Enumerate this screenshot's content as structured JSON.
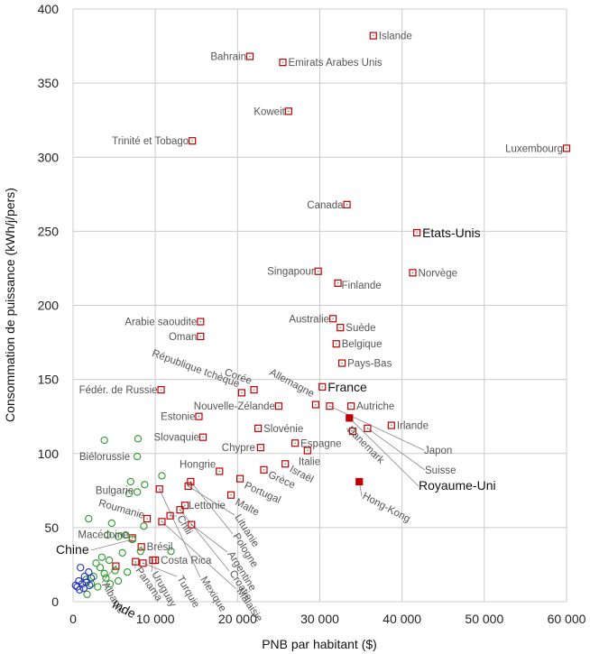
{
  "chart_data": {
    "type": "scatter",
    "xlabel": "PNB par habitant ($)",
    "ylabel": "Consommation de puissance (kWh/j/pers)",
    "xlim": [
      0,
      60000
    ],
    "ylim": [
      0,
      400
    ],
    "xticks": [
      0,
      10000,
      20000,
      30000,
      40000,
      50000,
      60000
    ],
    "xtick_labels": [
      "0",
      "10 000",
      "20 000",
      "30 000",
      "40 000",
      "50 000",
      "60 000"
    ],
    "yticks": [
      0,
      50,
      100,
      150,
      200,
      250,
      300,
      350,
      400
    ],
    "ytick_labels": [
      "0",
      "50",
      "100",
      "150",
      "200",
      "250",
      "300",
      "350",
      "400"
    ],
    "grid": true,
    "colors": {
      "red": "#c00000",
      "green": "#2a9a2a",
      "blue": "#2233bb",
      "grid": "#cccccc",
      "leader": "#888888"
    },
    "series": [
      {
        "marker": "square",
        "color": "red",
        "points": [
          {
            "label": "Islande",
            "x": 36500,
            "y": 382
          },
          {
            "label": "Bahrain",
            "x": 21500,
            "y": 368
          },
          {
            "label": "Emirats Arabes Unis",
            "x": 25500,
            "y": 364
          },
          {
            "label": "Koweit",
            "x": 26200,
            "y": 331
          },
          {
            "label": "Trinité et Tobago",
            "x": 14500,
            "y": 311
          },
          {
            "label": "Luxembourg",
            "x": 60000,
            "y": 306
          },
          {
            "label": "Canada",
            "x": 33300,
            "y": 268
          },
          {
            "label": "Etats-Unis",
            "x": 41800,
            "y": 249,
            "big": true
          },
          {
            "label": "Singapour",
            "x": 29800,
            "y": 223
          },
          {
            "label": "Norvège",
            "x": 41300,
            "y": 222
          },
          {
            "label": "Finlande",
            "x": 32200,
            "y": 215
          },
          {
            "label": "Australie",
            "x": 31600,
            "y": 191
          },
          {
            "label": "Arabie saoudite",
            "x": 15500,
            "y": 189
          },
          {
            "label": "Suède",
            "x": 32500,
            "y": 185
          },
          {
            "label": "Oman",
            "x": 15500,
            "y": 179
          },
          {
            "label": "Belgique",
            "x": 32000,
            "y": 174
          },
          {
            "label": "Pays-Bas",
            "x": 32700,
            "y": 161
          },
          {
            "label": "République tchèque",
            "x": 20500,
            "y": 141
          },
          {
            "label": "Corée",
            "x": 22000,
            "y": 143
          },
          {
            "label": "Fédér. de Russie",
            "x": 10700,
            "y": 143
          },
          {
            "label": "Allemagne",
            "x": 29500,
            "y": 133
          },
          {
            "label": "France",
            "x": 30300,
            "y": 145,
            "big": true
          },
          {
            "label": "Nouvelle-Zélande",
            "x": 25000,
            "y": 132
          },
          {
            "label": "Autriche",
            "x": 33800,
            "y": 132
          },
          {
            "label": "Estonie",
            "x": 15300,
            "y": 125
          },
          {
            "label": "Irlande",
            "x": 38700,
            "y": 119
          },
          {
            "label": "Slovénie",
            "x": 22500,
            "y": 117
          },
          {
            "label": "Slovaquie",
            "x": 15800,
            "y": 111
          },
          {
            "label": "Espagne",
            "x": 27000,
            "y": 107
          },
          {
            "label": "Chypre",
            "x": 22800,
            "y": 104
          },
          {
            "label": "Italie",
            "x": 28500,
            "y": 102
          },
          {
            "label": "Israël",
            "x": 25800,
            "y": 93
          },
          {
            "label": "Hongrie",
            "x": 17800,
            "y": 88
          },
          {
            "label": "Grèce",
            "x": 23200,
            "y": 89
          },
          {
            "label": "Portugal",
            "x": 20300,
            "y": 83
          },
          {
            "label": "Malte",
            "x": 19200,
            "y": 72
          },
          {
            "label": "Lettonie",
            "x": 13600,
            "y": 65
          },
          {
            "label": "Roumanie",
            "x": 9000,
            "y": 56
          },
          {
            "label": "Macédoine",
            "x": 7200,
            "y": 43
          },
          {
            "label": "Brésil",
            "x": 8300,
            "y": 37
          },
          {
            "label": "Costa Rica",
            "x": 10000,
            "y": 28
          },
          {
            "label": "Chili",
            "x": 11800,
            "y": 58
          },
          {
            "label": "Lituanie",
            "x": 14000,
            "y": 78
          },
          {
            "label": "Pologne",
            "x": 14300,
            "y": 81
          },
          {
            "label": "Argentine",
            "x": 14400,
            "y": 52
          },
          {
            "label": "Croatie",
            "x": 13000,
            "y": 62
          },
          {
            "label": "Malaisie",
            "x": 10800,
            "y": 54
          },
          {
            "label": "Mexique",
            "x": 10500,
            "y": 76
          },
          {
            "label": "Turquie",
            "x": 8500,
            "y": 26
          },
          {
            "label": "Uruguay",
            "x": 9700,
            "y": 28
          },
          {
            "label": "Panama",
            "x": 7600,
            "y": 27
          },
          {
            "label": "Albanie",
            "x": 5200,
            "y": 24
          },
          {
            "label": "Hong-Kong",
            "x": 34800,
            "y": 81
          },
          {
            "label": "Danemark",
            "x": 34000,
            "y": 115
          },
          {
            "label": "Japon",
            "x": 31200,
            "y": 132
          },
          {
            "label": "Suisse",
            "x": 35800,
            "y": 117
          },
          {
            "label": "Royaume-Uni",
            "x": 33600,
            "y": 124,
            "big": true
          }
        ]
      },
      {
        "marker": "circle",
        "color": "green",
        "points": [
          {
            "label": "Biélorussie",
            "x": 7800,
            "y": 98
          },
          {
            "label": "Bulgarie",
            "x": 7800,
            "y": 74
          },
          {
            "label": "Chine",
            "x": 7200,
            "y": 42,
            "big": true
          },
          {
            "x": 3800,
            "y": 109
          },
          {
            "x": 7900,
            "y": 110
          },
          {
            "x": 7000,
            "y": 81
          },
          {
            "x": 8700,
            "y": 79
          },
          {
            "x": 10800,
            "y": 85
          },
          {
            "x": 6800,
            "y": 73
          },
          {
            "x": 1900,
            "y": 56
          },
          {
            "x": 4700,
            "y": 53
          },
          {
            "x": 8600,
            "y": 51
          },
          {
            "x": 6400,
            "y": 45
          },
          {
            "x": 4200,
            "y": 45
          },
          {
            "x": 5500,
            "y": 44
          },
          {
            "x": 8200,
            "y": 34
          },
          {
            "x": 6000,
            "y": 33
          },
          {
            "x": 11900,
            "y": 34
          },
          {
            "x": 3500,
            "y": 30
          },
          {
            "x": 4400,
            "y": 28
          },
          {
            "x": 2800,
            "y": 26
          },
          {
            "x": 3300,
            "y": 23
          },
          {
            "x": 5100,
            "y": 21
          },
          {
            "x": 3800,
            "y": 19
          },
          {
            "x": 6600,
            "y": 20
          },
          {
            "x": 2500,
            "y": 17
          },
          {
            "x": 4000,
            "y": 16
          },
          {
            "x": 2200,
            "y": 12
          },
          {
            "x": 3000,
            "y": 10
          },
          {
            "x": 1600,
            "y": 15
          },
          {
            "x": 5500,
            "y": 14
          },
          {
            "x": 1700,
            "y": 5
          },
          {
            "x": 4500,
            "y": 12
          }
        ]
      },
      {
        "marker": "circle",
        "color": "blue",
        "points": [
          {
            "label": "Inde",
            "x": 2000,
            "y": 11,
            "big": true
          },
          {
            "x": 900,
            "y": 23
          },
          {
            "x": 1900,
            "y": 20
          },
          {
            "x": 1400,
            "y": 17
          },
          {
            "x": 700,
            "y": 14
          },
          {
            "x": 1100,
            "y": 12
          },
          {
            "x": 500,
            "y": 10
          },
          {
            "x": 1300,
            "y": 9
          },
          {
            "x": 800,
            "y": 8
          },
          {
            "x": 300,
            "y": 11
          },
          {
            "x": 2200,
            "y": 16
          },
          {
            "x": 1600,
            "y": 13
          }
        ]
      }
    ]
  }
}
